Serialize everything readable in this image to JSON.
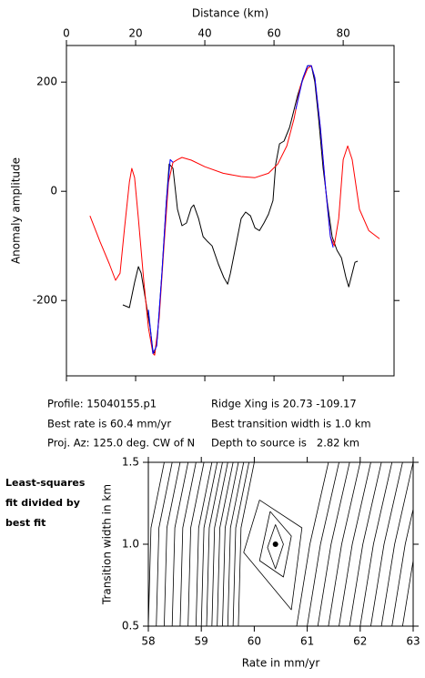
{
  "chart_data": [
    {
      "type": "line",
      "xlabel": "Distance (km)",
      "ylabel": "Anomaly amplitude",
      "xlim": [
        0,
        94.7
      ],
      "ylim": [
        -338,
        267
      ],
      "xticks": [
        0,
        20,
        40,
        60,
        80
      ],
      "yticks": [
        -200,
        0,
        200
      ],
      "series": [
        {
          "color": "#000000",
          "x": [
            16.3,
            18.2,
            19.7,
            20.8,
            21.6,
            22.9,
            24.2,
            25.0,
            25.5,
            26.3,
            27.6,
            28.9,
            29.7,
            30.8,
            32.1,
            33.4,
            34.7,
            36.1,
            36.8,
            38.2,
            39.5,
            40.8,
            42.1,
            43.9,
            45.5,
            46.6,
            47.4,
            48.7,
            50.5,
            51.8,
            53.2,
            54.5,
            55.8,
            57.1,
            58.4,
            59.7,
            60.5,
            61.6,
            62.9,
            64.5,
            65.5,
            66.8,
            68.4,
            69.7,
            70.8,
            71.8,
            72.9,
            74.2,
            75.5,
            76.8,
            78.2,
            79.5,
            80.8,
            81.6,
            82.6,
            83.4,
            84.2
          ],
          "values": [
            -208,
            -213,
            -167,
            -138,
            -150,
            -200,
            -250,
            -292,
            -297,
            -267,
            -150,
            -17,
            50,
            42,
            -33,
            -63,
            -58,
            -30,
            -25,
            -50,
            -83,
            -92,
            -100,
            -133,
            -158,
            -170,
            -150,
            -108,
            -50,
            -38,
            -45,
            -67,
            -72,
            -58,
            -42,
            -17,
            50,
            87,
            92,
            117,
            142,
            175,
            208,
            230,
            230,
            200,
            133,
            42,
            -25,
            -83,
            -108,
            -122,
            -158,
            -175,
            -150,
            -130,
            -128
          ]
        },
        {
          "color": "#ff0000",
          "x": [
            6.8,
            9.7,
            12.4,
            14.2,
            15.5,
            16.8,
            18.2,
            18.9,
            19.7,
            20.8,
            22.4,
            23.7,
            25.0,
            25.5,
            26.8,
            28.2,
            29.5,
            30.8,
            32.1,
            33.4,
            36.1,
            40.0,
            45.3,
            50.5,
            54.5,
            58.4,
            61.1,
            63.7,
            65.8,
            67.6,
            69.7,
            70.8,
            71.8,
            73.4,
            75.0,
            76.3,
            77.4,
            78.7,
            80.0,
            81.3,
            82.6,
            84.7,
            87.4,
            90.5
          ],
          "values": [
            -45,
            -92,
            -133,
            -163,
            -150,
            -67,
            17,
            42,
            25,
            -50,
            -167,
            -250,
            -297,
            -300,
            -233,
            -100,
            17,
            53,
            58,
            62,
            57,
            45,
            33,
            27,
            25,
            33,
            50,
            83,
            133,
            192,
            225,
            230,
            208,
            117,
            0,
            -83,
            -100,
            -50,
            58,
            83,
            58,
            -33,
            -72,
            -87
          ]
        },
        {
          "color": "#0000ff",
          "x": [
            23.7,
            25.0,
            26.1,
            27.6,
            28.9,
            30.0,
            30.8,
            null,
            66.3,
            68.4,
            69.7,
            70.8,
            71.8,
            73.4,
            75.0,
            76.3,
            77.1
          ],
          "values": [
            -217,
            -297,
            -283,
            -150,
            -17,
            58,
            53,
            null,
            150,
            208,
            230,
            230,
            208,
            117,
            0,
            -83,
            -103
          ]
        }
      ]
    },
    {
      "type": "contour",
      "xlabel": "Rate in mm/yr",
      "ylabel": "Transition width in km",
      "xlim": [
        58,
        63
      ],
      "ylim": [
        0.5,
        1.5
      ],
      "xticks": [
        58,
        59,
        60,
        61,
        62,
        63
      ],
      "yticks": [
        0.5,
        {
          "value": 1,
          "label": "1.0"
        },
        1.5
      ],
      "color": "#000000",
      "best_fit": {
        "x": 60.4,
        "y": 1.0
      },
      "contours": [
        {
          "x": [
            58.0,
            58.05,
            58.3
          ],
          "y": [
            0.5,
            1.1,
            1.5
          ]
        },
        {
          "x": [
            58.15,
            58.2,
            58.45
          ],
          "y": [
            0.5,
            1.1,
            1.5
          ]
        },
        {
          "x": [
            58.3,
            58.35,
            58.6
          ],
          "y": [
            0.5,
            1.1,
            1.5
          ]
        },
        {
          "x": [
            58.45,
            58.5,
            58.75
          ],
          "y": [
            0.5,
            1.1,
            1.5
          ]
        },
        {
          "x": [
            58.6,
            58.65,
            58.9
          ],
          "y": [
            0.5,
            1.1,
            1.5
          ]
        },
        {
          "x": [
            58.75,
            58.8,
            59.05
          ],
          "y": [
            0.5,
            1.1,
            1.5
          ]
        },
        {
          "x": [
            58.9,
            58.95,
            59.2
          ],
          "y": [
            0.5,
            1.1,
            1.5
          ]
        },
        {
          "x": [
            59.0,
            59.05,
            59.3
          ],
          "y": [
            0.5,
            1.1,
            1.5
          ]
        },
        {
          "x": [
            59.1,
            59.15,
            59.4
          ],
          "y": [
            0.5,
            1.1,
            1.5
          ]
        },
        {
          "x": [
            59.2,
            59.25,
            59.5
          ],
          "y": [
            0.5,
            1.1,
            1.5
          ]
        },
        {
          "x": [
            59.3,
            59.35,
            59.6
          ],
          "y": [
            0.5,
            1.1,
            1.5
          ]
        },
        {
          "x": [
            59.4,
            59.45,
            59.7
          ],
          "y": [
            0.5,
            1.1,
            1.5
          ]
        },
        {
          "x": [
            59.5,
            59.55,
            59.8
          ],
          "y": [
            0.5,
            1.1,
            1.5
          ]
        },
        {
          "x": [
            59.6,
            59.65,
            59.9
          ],
          "y": [
            0.5,
            1.1,
            1.5
          ]
        },
        {
          "x": [
            59.7,
            59.75,
            60.0
          ],
          "y": [
            0.5,
            1.1,
            1.5
          ]
        },
        {
          "x": [
            60.8,
            61.05,
            61.4
          ],
          "y": [
            0.5,
            1.0,
            1.5
          ]
        },
        {
          "x": [
            61.0,
            61.25,
            61.6
          ],
          "y": [
            0.5,
            1.0,
            1.5
          ]
        },
        {
          "x": [
            61.2,
            61.45,
            61.8
          ],
          "y": [
            0.5,
            1.0,
            1.5
          ]
        },
        {
          "x": [
            61.4,
            61.65,
            62.0
          ],
          "y": [
            0.5,
            1.0,
            1.5
          ]
        },
        {
          "x": [
            61.6,
            61.85,
            62.2
          ],
          "y": [
            0.5,
            1.0,
            1.5
          ]
        },
        {
          "x": [
            61.8,
            62.05,
            62.4
          ],
          "y": [
            0.5,
            1.0,
            1.5
          ]
        },
        {
          "x": [
            62.0,
            62.25,
            62.6
          ],
          "y": [
            0.5,
            1.0,
            1.5
          ]
        },
        {
          "x": [
            62.2,
            62.45,
            62.8
          ],
          "y": [
            0.5,
            1.0,
            1.5
          ]
        },
        {
          "x": [
            62.4,
            62.65,
            63.0
          ],
          "y": [
            0.5,
            1.0,
            1.5
          ]
        },
        {
          "x": [
            62.6,
            62.85,
            63.2
          ],
          "y": [
            0.5,
            1.0,
            1.5
          ]
        },
        {
          "x": [
            62.8,
            63.05,
            63.4
          ],
          "y": [
            0.5,
            1.0,
            1.5
          ]
        },
        {
          "x": [
            60.4,
            60.55,
            60.4,
            60.25,
            60.4
          ],
          "y": [
            1.12,
            1.0,
            0.85,
            0.98,
            1.12
          ]
        },
        {
          "x": [
            60.3,
            60.7,
            60.55,
            60.1,
            60.3
          ],
          "y": [
            1.2,
            1.05,
            0.8,
            0.9,
            1.2
          ]
        },
        {
          "x": [
            60.1,
            60.9,
            60.7,
            59.8,
            60.1
          ],
          "y": [
            1.27,
            1.1,
            0.6,
            0.95,
            1.27
          ]
        }
      ]
    }
  ],
  "info": {
    "profile": "Profile: 15040155.p1",
    "best_rate": "Best rate is 60.4 mm/yr",
    "projection": "Proj. Az: 125.0 deg. CW of N",
    "ridge": "Ridge Xing is 20.73 -109.17",
    "transition": "Best transition width is 1.0 km",
    "depth": "Depth to source is   2.82 km"
  },
  "caption": [
    "Least-squares",
    "fit divided by",
    "best fit"
  ]
}
